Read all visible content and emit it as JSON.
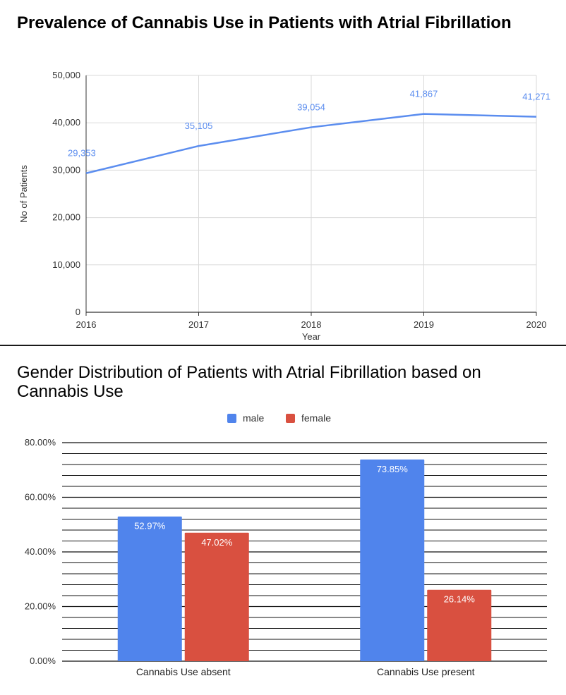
{
  "chart_data": [
    {
      "type": "line",
      "title": "Prevalence of Cannabis Use in Patients with Atrial Fibrillation",
      "xlabel": "Year",
      "ylabel": "No of Patients",
      "x": [
        "2016",
        "2017",
        "2018",
        "2019",
        "2020"
      ],
      "series": [
        {
          "name": "No of Patients",
          "values": [
            29353,
            35105,
            39054,
            41867,
            41271
          ],
          "labels": [
            "29,353",
            "35,105",
            "39,054",
            "41,867",
            "41,271"
          ]
        }
      ],
      "ylim": [
        0,
        50000
      ],
      "yticks": [
        0,
        10000,
        20000,
        30000,
        40000,
        50000
      ],
      "ytick_labels": [
        "0",
        "10,000",
        "20,000",
        "30,000",
        "40,000",
        "50,000"
      ],
      "grid": true,
      "colors": {
        "line": "#5b8def",
        "grid": "#d9d9d9",
        "axis": "#333333"
      }
    },
    {
      "type": "bar",
      "title": "Gender Distribution of Patients with Atrial Fibrillation based on Cannabis Use",
      "categories": [
        "Cannabis Use absent",
        "Cannabis Use present"
      ],
      "series": [
        {
          "name": "male",
          "values": [
            52.97,
            73.85
          ],
          "labels": [
            "52.97%",
            "73.85%"
          ],
          "color": "#5084ec"
        },
        {
          "name": "female",
          "values": [
            47.02,
            26.14
          ],
          "labels": [
            "47.02%",
            "26.14%"
          ],
          "color": "#d95040"
        }
      ],
      "ylim": [
        0,
        80
      ],
      "yticks": [
        0,
        20,
        40,
        60,
        80
      ],
      "ytick_labels": [
        "0.00%",
        "20.00%",
        "40.00%",
        "60.00%",
        "80.00%"
      ],
      "legend_position": "top-center",
      "grid": true,
      "colors": {
        "grid": "#111111"
      }
    }
  ]
}
